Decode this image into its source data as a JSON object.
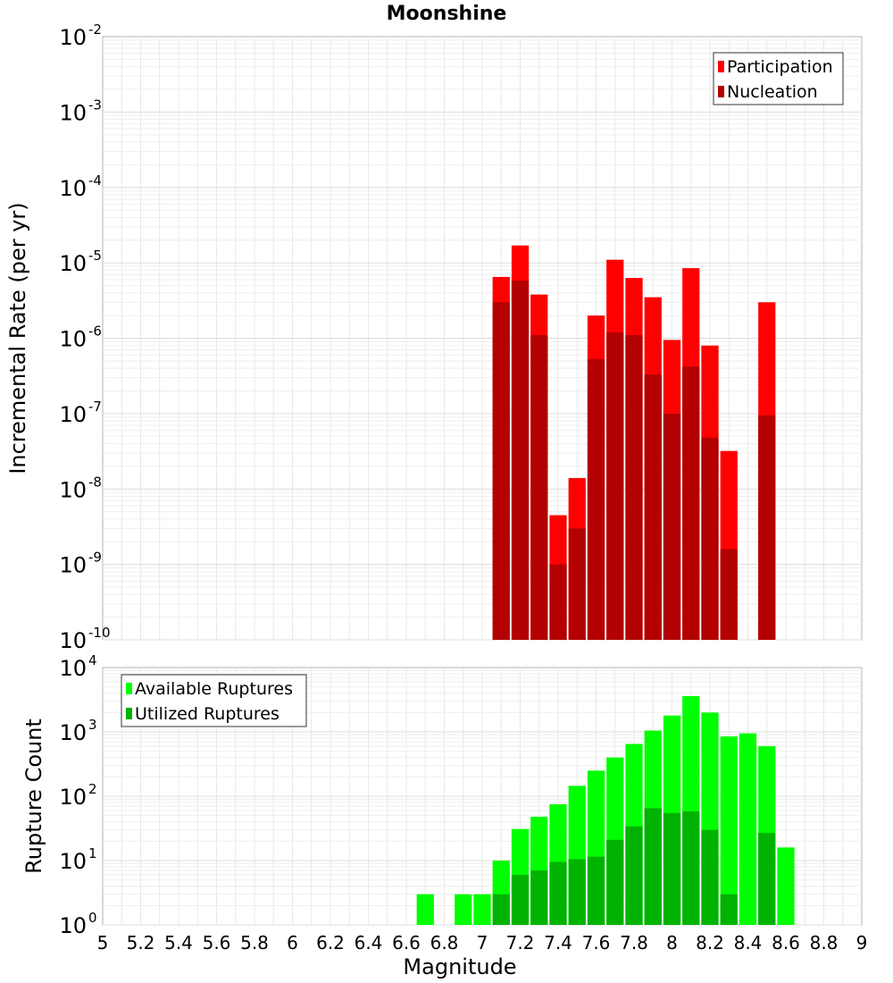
{
  "page": {
    "title": "Moonshine"
  },
  "chart_data": [
    {
      "type": "bar",
      "title": "Moonshine",
      "ylabel": "Incremental Rate (per yr)",
      "xlabel": "Magnitude",
      "ylog": true,
      "ylim_exp": [
        -10,
        -2
      ],
      "xlim": [
        5,
        9
      ],
      "legend": {
        "placement": "top-right",
        "entries": [
          "Participation",
          "Nucleation"
        ]
      },
      "colors": {
        "Participation": "#ff0000",
        "Nucleation": "#b30000"
      },
      "bin_width": 0.1,
      "series": [
        {
          "name": "Participation",
          "x": [
            7.1,
            7.2,
            7.3,
            7.4,
            7.5,
            7.6,
            7.7,
            7.8,
            7.9,
            8.0,
            8.1,
            8.2,
            8.3,
            8.5
          ],
          "values": [
            6.5e-06,
            1.7e-05,
            3.8e-06,
            4.5e-09,
            1.4e-08,
            2e-06,
            1.1e-05,
            6.3e-06,
            3.5e-06,
            9.5e-07,
            8.5e-06,
            8e-07,
            3.2e-08,
            3e-06
          ]
        },
        {
          "name": "Nucleation",
          "x": [
            7.1,
            7.2,
            7.3,
            7.4,
            7.5,
            7.6,
            7.7,
            7.8,
            7.9,
            8.0,
            8.1,
            8.2,
            8.3,
            8.5
          ],
          "values": [
            3e-06,
            5.8e-06,
            1.1e-06,
            1e-09,
            3e-09,
            5.3e-07,
            1.2e-06,
            1.1e-06,
            3.3e-07,
            1e-07,
            4.2e-07,
            4.8e-08,
            1.6e-09,
            9.5e-08
          ]
        }
      ]
    },
    {
      "type": "bar",
      "title": "",
      "ylabel": "Rupture Count",
      "xlabel": "Magnitude",
      "ylog": true,
      "ylim_exp": [
        0,
        4
      ],
      "xlim": [
        5,
        9
      ],
      "xticks": [
        "5",
        "5.2",
        "5.4",
        "5.6",
        "5.8",
        "6",
        "6.2",
        "6.4",
        "6.6",
        "6.8",
        "7",
        "7.2",
        "7.4",
        "7.6",
        "7.8",
        "8",
        "8.2",
        "8.4",
        "8.6",
        "8.8",
        "9"
      ],
      "legend": {
        "placement": "top-left",
        "entries": [
          "Available Ruptures",
          "Utilized Ruptures"
        ]
      },
      "colors": {
        "Available Ruptures": "#00ff00",
        "Utilized Ruptures": "#00b300"
      },
      "bin_width": 0.1,
      "series": [
        {
          "name": "Available Ruptures",
          "x": [
            6.7,
            6.9,
            7.0,
            7.1,
            7.2,
            7.3,
            7.4,
            7.5,
            7.6,
            7.7,
            7.8,
            7.9,
            8.0,
            8.1,
            8.2,
            8.3,
            8.4,
            8.5,
            8.6
          ],
          "values": [
            3,
            3,
            3,
            10,
            31,
            48,
            75,
            145,
            250,
            400,
            650,
            1050,
            1800,
            3600,
            2000,
            850,
            950,
            600,
            16
          ]
        },
        {
          "name": "Utilized Ruptures",
          "x": [
            7.1,
            7.2,
            7.3,
            7.4,
            7.5,
            7.6,
            7.7,
            7.8,
            7.9,
            8.0,
            8.1,
            8.2,
            8.3,
            8.5
          ],
          "values": [
            3,
            6,
            7,
            9.5,
            10.5,
            11.5,
            21,
            34,
            65,
            55,
            58,
            30,
            3,
            27
          ]
        }
      ]
    }
  ]
}
